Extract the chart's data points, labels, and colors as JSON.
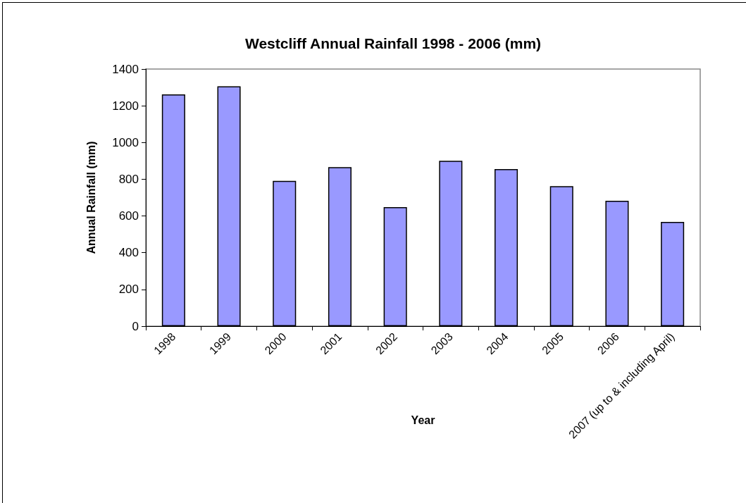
{
  "chart_data": {
    "type": "bar",
    "title": "Westcliff Annual Rainfall 1998 - 2006 (mm)",
    "xlabel": "Year",
    "ylabel": "Annual Rainfall (mm)",
    "categories": [
      "1998",
      "1999",
      "2000",
      "2001",
      "2002",
      "2003",
      "2004",
      "2005",
      "2006",
      "2007 (up to & including April)"
    ],
    "values": [
      1262,
      1306,
      791,
      866,
      648,
      900,
      855,
      762,
      683,
      568
    ],
    "color": "#9999ff",
    "ylim": [
      0,
      1400
    ],
    "yticks": [
      0,
      200,
      400,
      600,
      800,
      1000,
      1200,
      1400
    ],
    "grid": false
  }
}
